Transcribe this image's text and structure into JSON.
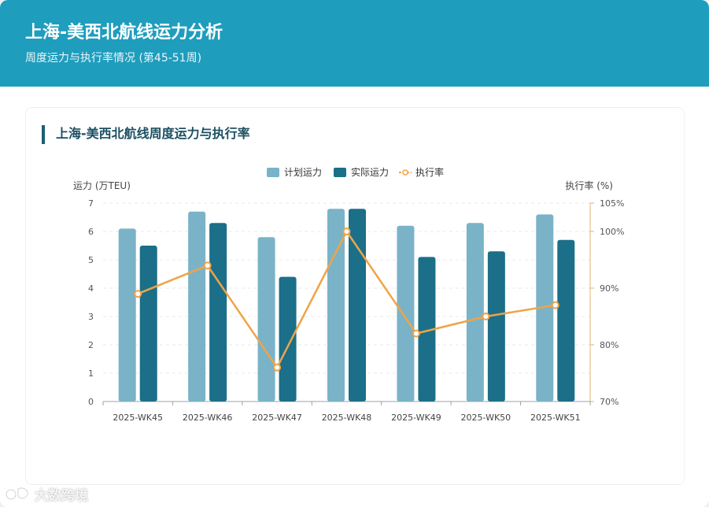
{
  "header": {
    "title": "上海-美西北航线运力分析",
    "subtitle": "周度运力与执行率情况 (第45-51周)"
  },
  "card": {
    "title": "上海-美西北航线周度运力与执行率"
  },
  "colors": {
    "header_bg": "#1f9dbd",
    "planned": "#7ab3c8",
    "actual": "#1b6f88",
    "rate": "#f0a347"
  },
  "watermark": {
    "logo": "dashuju-logo",
    "text": "大数跨境"
  },
  "chart_data": {
    "type": "bar",
    "categories": [
      "2025-WK45",
      "2025-WK46",
      "2025-WK47",
      "2025-WK48",
      "2025-WK49",
      "2025-WK50",
      "2025-WK51"
    ],
    "series": [
      {
        "name": "计划运力",
        "type": "bar",
        "axis": "left",
        "values": [
          6.1,
          6.7,
          5.8,
          6.8,
          6.2,
          6.3,
          6.6
        ]
      },
      {
        "name": "实际运力",
        "type": "bar",
        "axis": "left",
        "values": [
          5.5,
          6.3,
          4.4,
          6.8,
          5.1,
          5.3,
          5.7
        ]
      },
      {
        "name": "执行率",
        "type": "line",
        "axis": "right",
        "values": [
          89,
          94,
          76,
          100,
          82,
          85,
          87
        ]
      }
    ],
    "ylabel": "运力 (万TEU)",
    "ylabel_right": "执行率 (%)",
    "ylim": [
      0,
      7
    ],
    "yticks": [
      "0",
      "1",
      "2",
      "3",
      "4",
      "5",
      "6",
      "7"
    ],
    "ylim_right": [
      70,
      105
    ],
    "yticks_right": [
      "70%",
      "80%",
      "90%",
      "100%",
      "105%"
    ],
    "legend_position": "top-center",
    "grid": true
  }
}
